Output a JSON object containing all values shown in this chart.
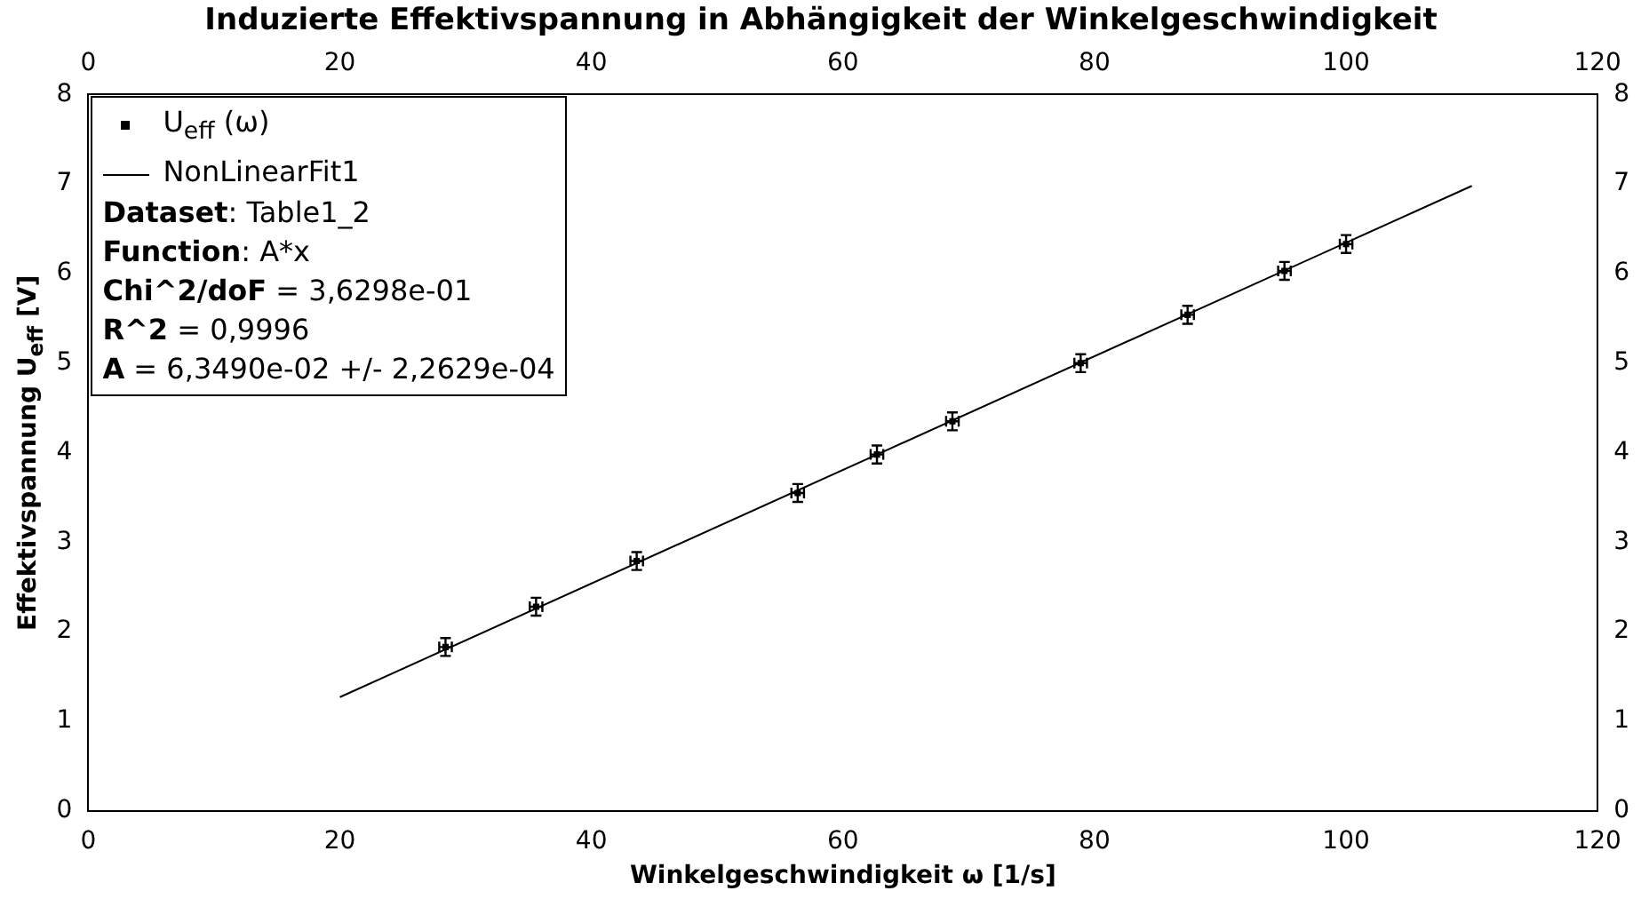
{
  "chart_data": {
    "type": "scatter",
    "title": "Induzierte Effektivspannung in Abhängigkeit der Winkelgeschwindigkeit",
    "xlabel": "Winkelgeschwindigkeit ω [1/s]",
    "ylabel": "Effektivspannung U$_{eff}$ [V]",
    "xlim": [
      0,
      120
    ],
    "xticks": [
      0,
      20,
      40,
      60,
      80,
      100,
      120
    ],
    "ylim": [
      0,
      8
    ],
    "yticks": [
      0,
      1,
      2,
      3,
      4,
      5,
      6,
      7,
      8
    ],
    "x2lim": [
      0,
      120
    ],
    "x2ticks": [
      0,
      20,
      40,
      60,
      80,
      100,
      120
    ],
    "y2lim": [
      0,
      8
    ],
    "y2ticks": [
      0,
      1,
      2,
      3,
      4,
      5,
      6,
      7,
      8
    ],
    "grid": false,
    "legend": "top left",
    "series": [
      {
        "name": "U$_{eff}$ (ω)",
        "color": "#000000",
        "x": [
          28.4,
          35.6,
          43.6,
          56.4,
          62.7,
          68.7,
          78.9,
          87.4,
          95.1,
          100.0
        ],
        "values": [
          1.83,
          2.28,
          2.79,
          3.55,
          3.98,
          4.35,
          5.0,
          5.54,
          6.03,
          6.33
        ],
        "errors": [
          0.1,
          0.1,
          0.1,
          0.1,
          0.1,
          0.1,
          0.1,
          0.1,
          0.1,
          0.1
        ],
        "xerrors": [
          0.5,
          0.5,
          0.5,
          0.5,
          0.5,
          0.5,
          0.5,
          0.5,
          0.5,
          0.5
        ]
      },
      {
        "name": "NonLinearFit1",
        "type": "line",
        "marker": "none",
        "line_style": "solid",
        "color": "#000000",
        "x": [
          20,
          110
        ],
        "values": [
          1.27,
          6.98
        ]
      }
    ],
    "annotations": [
      "Dataset: Table1_2",
      "Function: A*x",
      "Chi^2/doF = 3,6298e-01",
      "R^2 = 0,9996",
      "A = 6,3490e-02 +/- 2,2629e-04"
    ]
  }
}
